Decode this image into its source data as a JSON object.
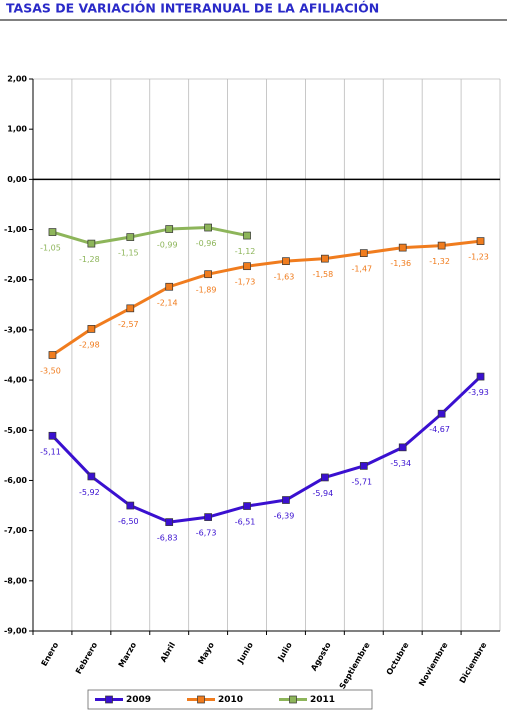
{
  "chart_data": {
    "type": "line",
    "title": "TASAS DE VARIACIÓN INTERANUAL DE LA AFILIACIÓN",
    "categories": [
      "Enero",
      "Febrero",
      "Marzo",
      "Abril",
      "Mayo",
      "Junio",
      "Julio",
      "Agosto",
      "Septiembre",
      "Octubre",
      "Noviembre",
      "Diciembre"
    ],
    "series": [
      {
        "name": "2009",
        "color": "#3a10d0",
        "values": [
          -5.11,
          -5.92,
          -6.5,
          -6.83,
          -6.73,
          -6.51,
          -6.39,
          -5.94,
          -5.71,
          -5.34,
          -4.67,
          -3.93
        ],
        "value_labels": [
          "-5,11",
          "-5,92",
          "-6,50",
          "-6,83",
          "-6,73",
          "-6,51",
          "-6,39",
          "-5,94",
          "-5,71",
          "-5,34",
          "-4,67",
          "-3,93"
        ]
      },
      {
        "name": "2010",
        "color": "#f07c1e",
        "values": [
          -3.5,
          -2.98,
          -2.57,
          -2.14,
          -1.89,
          -1.73,
          -1.63,
          -1.58,
          -1.47,
          -1.36,
          -1.32,
          -1.23
        ],
        "value_labels": [
          "-3,50",
          "-2,98",
          "-2,57",
          "-2,14",
          "-1,89",
          "-1,73",
          "-1,63",
          "-1,58",
          "-1,47",
          "-1,36",
          "-1,32",
          "-1,23"
        ]
      },
      {
        "name": "2011",
        "color": "#8db55a",
        "values": [
          -1.05,
          -1.28,
          -1.15,
          -0.99,
          -0.96,
          -1.12,
          null,
          null,
          null,
          null,
          null,
          null
        ],
        "value_labels": [
          "-1,05",
          "-1,28",
          "-1,15",
          "-0,99",
          "-0,96",
          "-1,12",
          null,
          null,
          null,
          null,
          null,
          null
        ]
      }
    ],
    "ylim": [
      -9,
      2
    ],
    "yticks": [
      {
        "value": 2,
        "label": "2,00"
      },
      {
        "value": 1,
        "label": "1,00"
      },
      {
        "value": 0,
        "label": "0,00"
      },
      {
        "value": -1,
        "label": "-1,00"
      },
      {
        "value": -2,
        "label": "-2,00"
      },
      {
        "value": -3,
        "label": "-3,00"
      },
      {
        "value": -4,
        "label": "-4,00"
      },
      {
        "value": -5,
        "label": "-5,00"
      },
      {
        "value": -6,
        "label": "-6,00"
      },
      {
        "value": -7,
        "label": "-7,00"
      },
      {
        "value": -8,
        "label": "-8,00"
      },
      {
        "value": -9,
        "label": "-9,00"
      }
    ],
    "legend": "bottom"
  }
}
